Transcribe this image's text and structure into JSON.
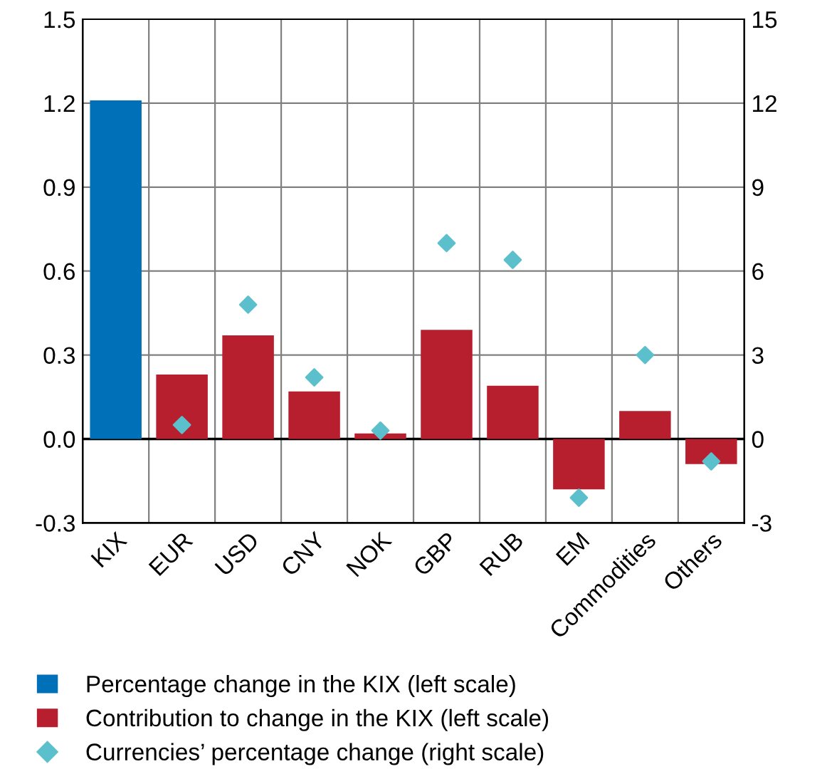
{
  "chart_data": {
    "type": "bar",
    "categories": [
      "KIX",
      "EUR",
      "USD",
      "CNY",
      "NOK",
      "GBP",
      "RUB",
      "EM",
      "Commodities",
      "Others"
    ],
    "series": [
      {
        "name": "Percentage change in the KIX (left scale)",
        "color": "#0070b8",
        "values": [
          1.21,
          null,
          null,
          null,
          null,
          null,
          null,
          null,
          null,
          null
        ]
      },
      {
        "name": "Contribution to change in the KIX (left scale)",
        "color": "#b81f2e",
        "values": [
          null,
          0.23,
          0.37,
          0.17,
          0.02,
          0.39,
          0.19,
          -0.18,
          0.1,
          -0.09
        ]
      },
      {
        "name": "Currencies’ percentage change (right scale)",
        "type": "scatter",
        "axis": "y2",
        "marker": "diamond",
        "color": "#5bc0cc",
        "values": [
          null,
          0.5,
          4.8,
          2.2,
          0.3,
          7.0,
          6.4,
          -2.1,
          3.0,
          -0.8
        ]
      }
    ],
    "ylim": [
      -0.3,
      1.5
    ],
    "yticks": [
      {
        "value": -0.3,
        "label": "-0.3"
      },
      {
        "value": 0,
        "label": "0.0"
      },
      0.3,
      0.6,
      0.9,
      1.2,
      1.5
    ],
    "y2lim": [
      -3,
      15
    ],
    "y2ticks": [
      {
        "value": -3,
        "label": "-3"
      },
      0,
      3,
      6,
      9,
      12,
      15
    ],
    "grid": true,
    "legend": "bottom"
  }
}
